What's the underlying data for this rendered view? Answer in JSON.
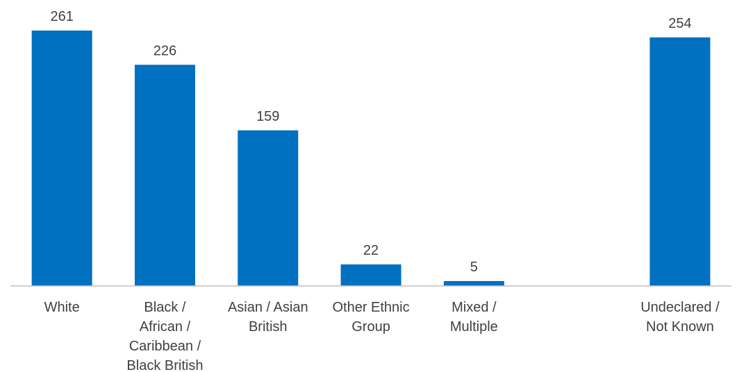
{
  "chart_data": {
    "type": "bar",
    "categories": [
      [
        "White"
      ],
      [
        "Black /",
        "African /",
        "Caribbean /",
        "Black British"
      ],
      [
        "Asian / Asian",
        "British"
      ],
      [
        "Other Ethnic",
        "Group"
      ],
      [
        "Mixed /",
        "Multiple"
      ],
      [
        ""
      ],
      [
        "Undeclared /",
        "Not Known"
      ]
    ],
    "values": [
      261,
      226,
      159,
      22,
      5,
      null,
      254
    ],
    "ylim": [
      0,
      261
    ],
    "grid": false,
    "legend": "none",
    "title": "",
    "xlabel": "",
    "ylabel": "",
    "bar_color": "#0070C0",
    "label_color": "#404040"
  }
}
